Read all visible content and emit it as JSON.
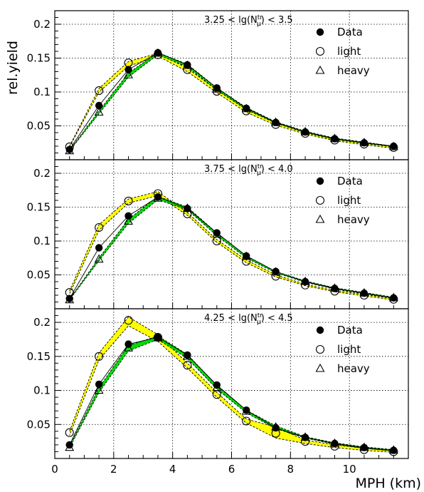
{
  "chart_data": {
    "type": "line",
    "xlabel": "MPH (km)",
    "ylabel": "rel.yield",
    "xlim": [
      0,
      12
    ],
    "ylim": [
      0,
      0.22
    ],
    "x_ticks": [
      "0",
      "2",
      "4",
      "6",
      "8",
      "10"
    ],
    "y_ticks": [
      "0.05",
      "0.1",
      "0.15",
      "0.2"
    ],
    "grid": true,
    "legend_position": "top-right",
    "legend": {
      "data": "Data",
      "light": "light",
      "heavy": "heavy"
    },
    "panels": [
      {
        "label_pre": "3.25 < lg(N",
        "label_sub": "μ",
        "label_sup": "tr",
        "label_post": ") < 3.5",
        "x": [
          0.5,
          1.5,
          2.5,
          3.5,
          4.5,
          5.5,
          6.5,
          7.5,
          8.5,
          9.5,
          10.5,
          11.5
        ],
        "data": [
          0.015,
          0.08,
          0.133,
          0.158,
          0.14,
          0.106,
          0.076,
          0.055,
          0.041,
          0.031,
          0.025,
          0.02
        ],
        "light": [
          0.019,
          0.102,
          0.143,
          0.155,
          0.133,
          0.101,
          0.072,
          0.052,
          0.039,
          0.029,
          0.023,
          0.018
        ],
        "heavy": [
          0.013,
          0.07,
          0.125,
          0.157,
          0.139,
          0.104,
          0.075,
          0.055,
          0.041,
          0.031,
          0.025,
          0.019
        ],
        "light_band": [
          [
            0.019,
            0.02
          ],
          [
            0.1,
            0.105
          ],
          [
            0.138,
            0.145
          ],
          [
            0.153,
            0.157
          ],
          [
            0.13,
            0.135
          ],
          [
            0.099,
            0.103
          ],
          [
            0.07,
            0.074
          ],
          [
            0.051,
            0.054
          ],
          [
            0.038,
            0.04
          ],
          [
            0.028,
            0.03
          ],
          [
            0.022,
            0.024
          ],
          [
            0.017,
            0.019
          ]
        ],
        "heavy_band": [
          [
            0.013,
            0.014
          ],
          [
            0.068,
            0.072
          ],
          [
            0.122,
            0.128
          ],
          [
            0.155,
            0.158
          ],
          [
            0.137,
            0.141
          ],
          [
            0.103,
            0.106
          ],
          [
            0.074,
            0.077
          ],
          [
            0.054,
            0.056
          ],
          [
            0.04,
            0.042
          ],
          [
            0.03,
            0.032
          ],
          [
            0.024,
            0.026
          ],
          [
            0.019,
            0.02
          ]
        ]
      },
      {
        "label_pre": "3.75 < lg(N",
        "label_sub": "μ",
        "label_sup": "tr",
        "label_post": ") < 4.0",
        "x": [
          0.5,
          1.5,
          2.5,
          3.5,
          4.5,
          5.5,
          6.5,
          7.5,
          8.5,
          9.5,
          10.5,
          11.5
        ],
        "data": [
          0.015,
          0.09,
          0.137,
          0.165,
          0.148,
          0.112,
          0.078,
          0.055,
          0.04,
          0.03,
          0.023,
          0.016
        ],
        "light": [
          0.024,
          0.12,
          0.159,
          0.17,
          0.14,
          0.1,
          0.07,
          0.048,
          0.035,
          0.026,
          0.02,
          0.014
        ],
        "heavy": [
          0.013,
          0.073,
          0.129,
          0.163,
          0.148,
          0.11,
          0.077,
          0.054,
          0.04,
          0.03,
          0.023,
          0.016
        ],
        "light_band": [
          [
            0.022,
            0.026
          ],
          [
            0.116,
            0.124
          ],
          [
            0.156,
            0.162
          ],
          [
            0.167,
            0.173
          ],
          [
            0.138,
            0.142
          ],
          [
            0.098,
            0.102
          ],
          [
            0.068,
            0.072
          ],
          [
            0.047,
            0.05
          ],
          [
            0.034,
            0.036
          ],
          [
            0.025,
            0.027
          ],
          [
            0.019,
            0.021
          ],
          [
            0.013,
            0.015
          ]
        ],
        "heavy_band": [
          [
            0.013,
            0.014
          ],
          [
            0.071,
            0.075
          ],
          [
            0.126,
            0.132
          ],
          [
            0.161,
            0.166
          ],
          [
            0.146,
            0.15
          ],
          [
            0.108,
            0.112
          ],
          [
            0.075,
            0.078
          ],
          [
            0.053,
            0.055
          ],
          [
            0.039,
            0.041
          ],
          [
            0.029,
            0.031
          ],
          [
            0.022,
            0.024
          ],
          [
            0.015,
            0.017
          ]
        ]
      },
      {
        "label_pre": "4.25 < lg(N",
        "label_sub": "μ",
        "label_sup": "tr",
        "label_post": ") < 4.5",
        "x": [
          0.5,
          1.5,
          2.5,
          3.5,
          4.5,
          5.5,
          6.5,
          7.5,
          8.5,
          9.5,
          10.5,
          11.5
        ],
        "data": [
          0.02,
          0.109,
          0.168,
          0.178,
          0.152,
          0.108,
          0.071,
          0.045,
          0.031,
          0.022,
          0.016,
          0.012
        ],
        "light": [
          0.038,
          0.15,
          0.203,
          0.178,
          0.137,
          0.094,
          0.055,
          0.037,
          0.025,
          0.018,
          0.013,
          0.01
        ],
        "heavy": [
          0.016,
          0.1,
          0.162,
          0.177,
          0.15,
          0.104,
          0.069,
          0.046,
          0.031,
          0.022,
          0.016,
          0.012
        ],
        "light_band": [
          [
            0.034,
            0.04
          ],
          [
            0.145,
            0.155
          ],
          [
            0.195,
            0.208
          ],
          [
            0.172,
            0.182
          ],
          [
            0.133,
            0.14
          ],
          [
            0.09,
            0.097
          ],
          [
            0.052,
            0.058
          ],
          [
            0.03,
            0.046
          ],
          [
            0.022,
            0.027
          ],
          [
            0.016,
            0.02
          ],
          [
            0.012,
            0.015
          ],
          [
            0.009,
            0.011
          ]
        ],
        "heavy_band": [
          [
            0.016,
            0.018
          ],
          [
            0.097,
            0.104
          ],
          [
            0.158,
            0.166
          ],
          [
            0.175,
            0.18
          ],
          [
            0.147,
            0.153
          ],
          [
            0.102,
            0.107
          ],
          [
            0.067,
            0.071
          ],
          [
            0.044,
            0.048
          ],
          [
            0.03,
            0.032
          ],
          [
            0.021,
            0.023
          ],
          [
            0.015,
            0.017
          ],
          [
            0.011,
            0.013
          ]
        ]
      }
    ],
    "colors": {
      "light_band": "#ffff00",
      "heavy_band": "#00dd00",
      "line": "#000000"
    }
  }
}
